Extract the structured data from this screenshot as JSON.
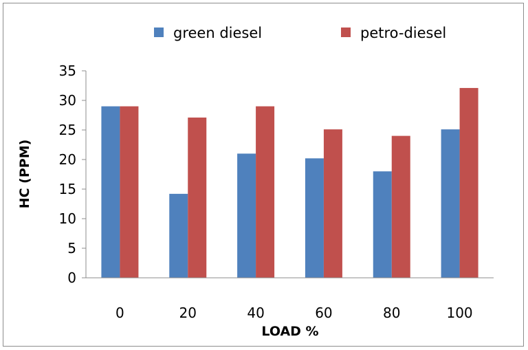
{
  "chart_data": {
    "type": "bar",
    "categories": [
      "0",
      "20",
      "40",
      "60",
      "80",
      "100"
    ],
    "series": [
      {
        "name": "green diesel",
        "values": [
          29,
          14.2,
          21,
          20.2,
          18,
          25.1
        ],
        "color": "#4f81bd"
      },
      {
        "name": "petro-diesel",
        "values": [
          29,
          27.1,
          29,
          25.1,
          24,
          32.1
        ],
        "color": "#c0504d"
      }
    ],
    "title": "",
    "xlabel": "LOAD %",
    "ylabel": "HC (PPM)",
    "ylim": [
      0,
      35
    ],
    "yticks": [
      0,
      5,
      10,
      15,
      20,
      25,
      30,
      35
    ],
    "grid": false,
    "legend_position": "top"
  }
}
